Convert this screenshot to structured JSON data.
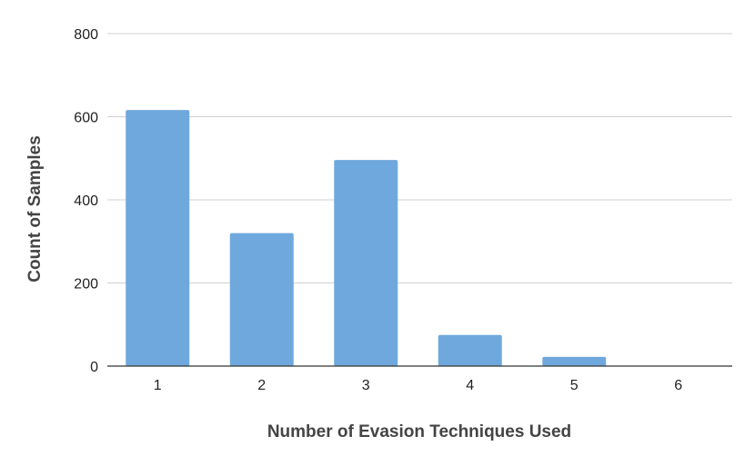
{
  "chart_data": {
    "type": "bar",
    "categories": [
      "1",
      "2",
      "3",
      "4",
      "5",
      "6"
    ],
    "values": [
      616,
      320,
      496,
      75,
      22,
      0
    ],
    "title": "",
    "xlabel": "Number of Evasion Techniques Used",
    "ylabel": "Count of Samples",
    "ylim": [
      0,
      800
    ],
    "yticks": [
      "0",
      "200",
      "400",
      "600",
      "800"
    ],
    "grid": true,
    "legend": "none",
    "bar_color": "#6fa8dc"
  }
}
